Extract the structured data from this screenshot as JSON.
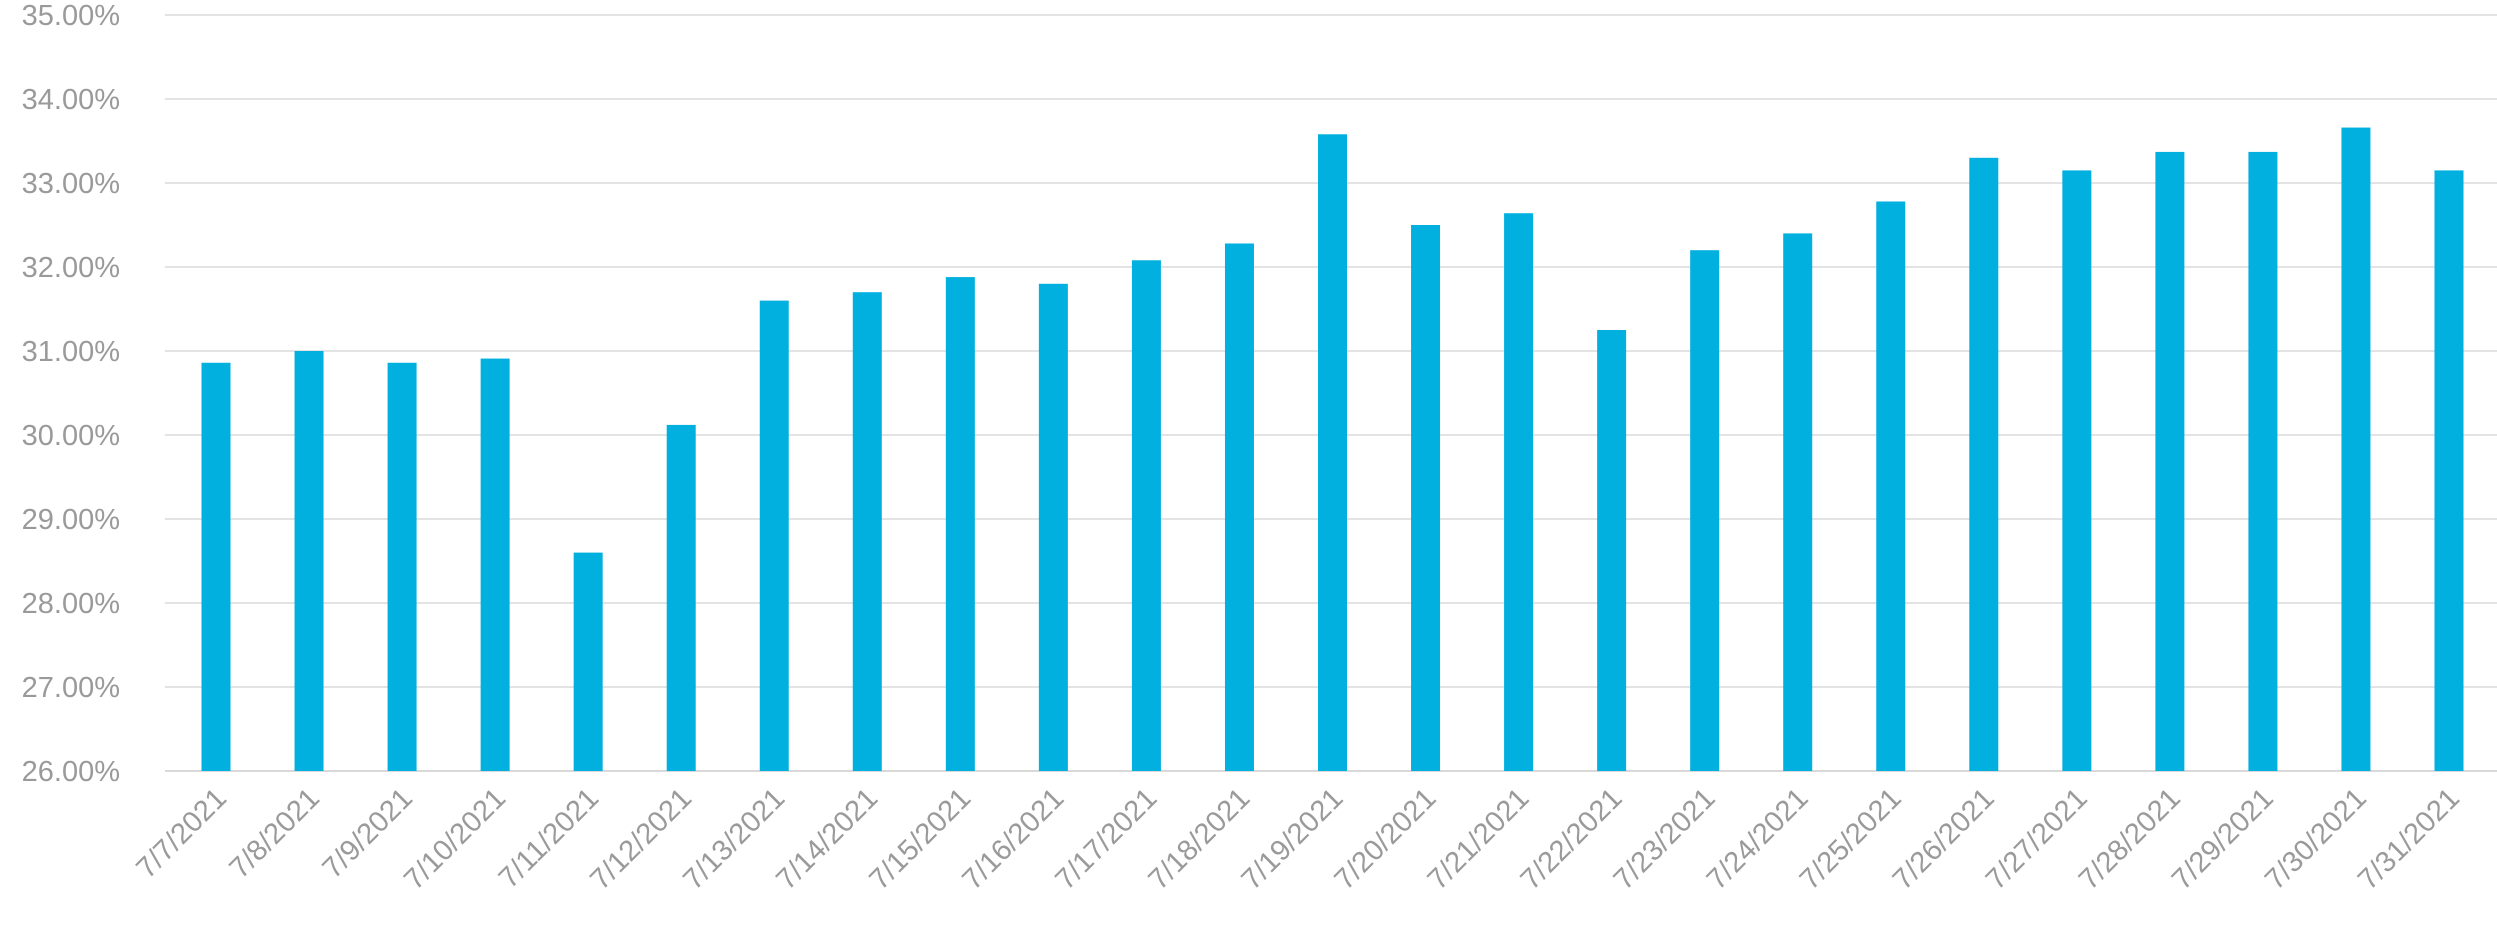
{
  "chart_data": {
    "type": "bar",
    "title": "",
    "xlabel": "",
    "ylabel": "",
    "categories": [
      "7/7/2021",
      "7/8/2021",
      "7/9/2021",
      "7/10/2021",
      "7/11/2021",
      "7/12/2021",
      "7/13/2021",
      "7/14/2021",
      "7/15/2021",
      "7/16/2021",
      "7/17/2021",
      "7/18/2021",
      "7/19/2021",
      "7/20/2021",
      "7/21/2021",
      "7/22/2021",
      "7/23/2021",
      "7/24/2021",
      "7/25/2021",
      "7/26/2021",
      "7/27/2021",
      "7/28/2021",
      "7/29/2021",
      "7/30/2021",
      "7/31/2021"
    ],
    "values": [
      30.86,
      31.0,
      30.86,
      30.91,
      28.6,
      30.12,
      31.6,
      31.7,
      31.88,
      31.8,
      32.08,
      32.28,
      33.58,
      32.5,
      32.64,
      31.25,
      32.2,
      32.4,
      32.78,
      33.3,
      33.15,
      33.37,
      33.37,
      33.66,
      33.15
    ],
    "ylim": [
      26,
      35
    ],
    "yticks": [
      26,
      27,
      28,
      29,
      30,
      31,
      32,
      33,
      34,
      35
    ],
    "ytick_labels": [
      "26.00%",
      "27.00%",
      "28.00%",
      "29.00%",
      "30.00%",
      "31.00%",
      "32.00%",
      "33.00%",
      "34.00%",
      "35.00%"
    ],
    "grid": true,
    "legend": "none",
    "colors": {
      "bar": "#02b0e0",
      "grid": "#e3e3e3",
      "text": "#9a9a9a"
    }
  }
}
